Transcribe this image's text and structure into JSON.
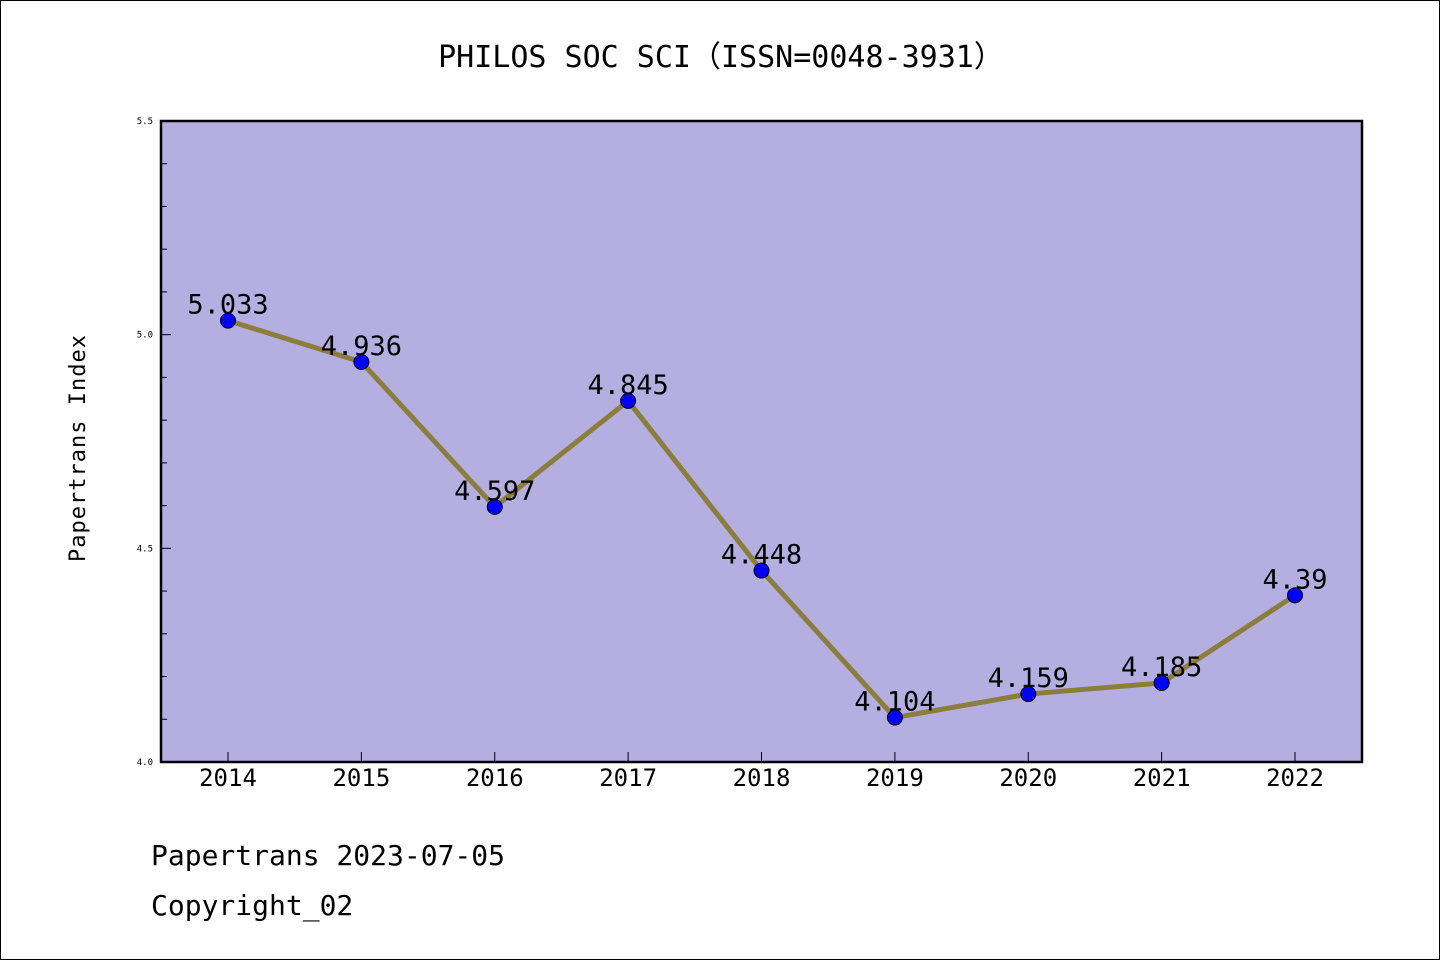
{
  "chart_data": {
    "type": "line",
    "title": "PHILOS SOC SCI（ISSN=0048-3931）",
    "xlabel": "",
    "ylabel": "Papertrans Index",
    "categories": [
      "2014",
      "2015",
      "2016",
      "2017",
      "2018",
      "2019",
      "2020",
      "2021",
      "2022"
    ],
    "values": [
      5.033,
      4.936,
      4.597,
      4.845,
      4.448,
      4.104,
      4.159,
      4.185,
      4.39
    ],
    "data_labels": [
      "5.033",
      "4.936",
      "4.597",
      "4.845",
      "4.448",
      "4.104",
      "4.159",
      "4.185",
      "4.39"
    ],
    "ylim": [
      4.0,
      5.5
    ],
    "yticks_major": [
      4.0,
      4.5,
      5.0,
      5.5
    ],
    "ytick_labels": [
      "4.0",
      "4.5",
      "5.0",
      "5.5"
    ],
    "grid": false,
    "legend": "none",
    "colors": {
      "plot_background": "#b5aee1",
      "line": "#8b7d3a",
      "marker": "#0000ff"
    }
  },
  "footer": {
    "date_line": "Papertrans 2023-07-05",
    "copyright_line": "Copyright_02"
  }
}
